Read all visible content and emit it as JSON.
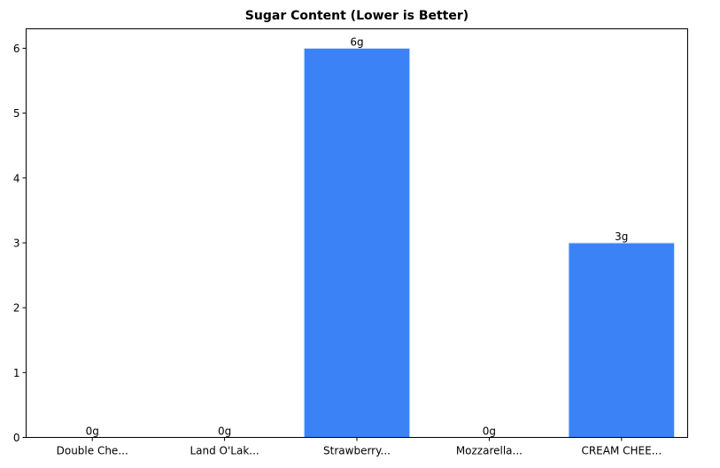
{
  "chart_data": {
    "type": "bar",
    "title": "Sugar Content (Lower is Better)",
    "xlabel": "",
    "ylabel": "",
    "categories": [
      "Double Che...",
      "Land O'Lak...",
      "Strawberry...",
      "Mozzarella...",
      "CREAM CHEE..."
    ],
    "values": [
      0,
      0,
      6,
      0,
      3
    ],
    "value_labels": [
      "0g",
      "0g",
      "6g",
      "0g",
      "3g"
    ],
    "ylim": [
      0,
      6.3
    ],
    "yticks": [
      0,
      1,
      2,
      3,
      4,
      5,
      6
    ],
    "grid": false,
    "legend": null,
    "bar_color": "#3b82f6",
    "bar_edge_color": "#dbeafe"
  }
}
